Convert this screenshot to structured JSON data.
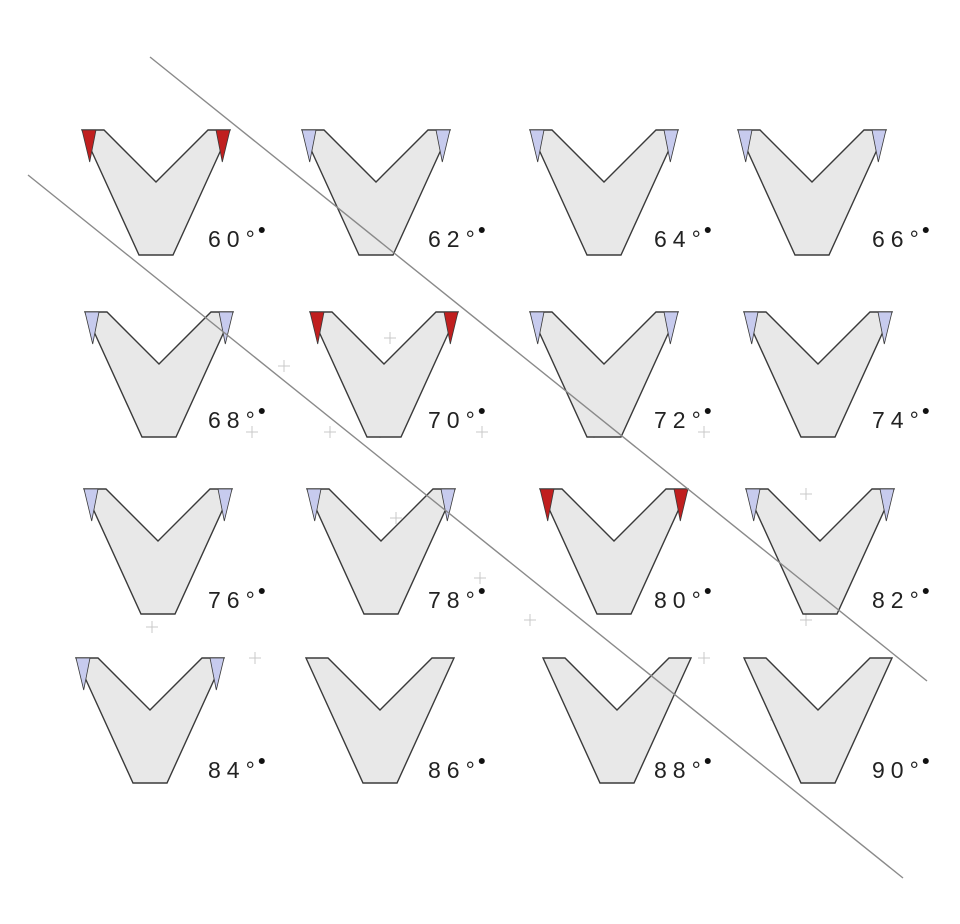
{
  "diagram": {
    "colors": {
      "shape_fill": "#e8e8e8",
      "shape_stroke": "#3a3a3a",
      "corner_blue": "#c7cbee",
      "corner_red": "#c01f1f",
      "guide_line": "#8a8a8a",
      "crosshair": "#c8c8c8",
      "label": "#222222"
    },
    "shapes": [
      {
        "label": "60°",
        "corner": "red"
      },
      {
        "label": "62°",
        "corner": "blue"
      },
      {
        "label": "64°",
        "corner": "blue"
      },
      {
        "label": "66°",
        "corner": "blue"
      },
      {
        "label": "68°",
        "corner": "blue"
      },
      {
        "label": "70°",
        "corner": "red"
      },
      {
        "label": "72°",
        "corner": "blue"
      },
      {
        "label": "74°",
        "corner": "blue"
      },
      {
        "label": "76°",
        "corner": "blue"
      },
      {
        "label": "78°",
        "corner": "blue"
      },
      {
        "label": "80°",
        "corner": "red"
      },
      {
        "label": "82°",
        "corner": "blue"
      },
      {
        "label": "84°",
        "corner": "blue"
      },
      {
        "label": "86°",
        "corner": "none"
      },
      {
        "label": "88°",
        "corner": "none"
      },
      {
        "label": "90°",
        "corner": "none"
      }
    ]
  }
}
